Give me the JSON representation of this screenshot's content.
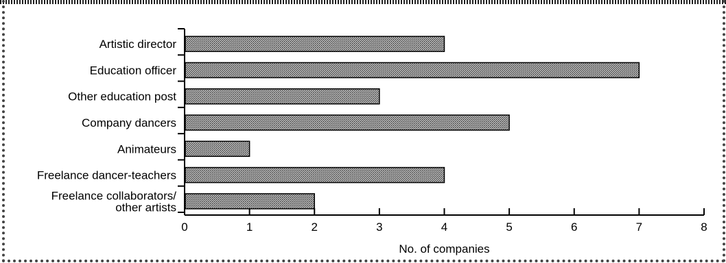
{
  "chart_data": {
    "type": "bar",
    "orientation": "horizontal",
    "categories": [
      [
        "Artistic director"
      ],
      [
        "Education officer"
      ],
      [
        "Other education post"
      ],
      [
        "Company dancers"
      ],
      [
        "Animateurs"
      ],
      [
        "Freelance dancer-teachers"
      ],
      [
        "Freelance collaborators/",
        "other artists"
      ]
    ],
    "values": [
      4,
      7,
      3,
      5,
      1,
      4,
      2
    ],
    "xlabel": "No. of companies",
    "ylabel": "",
    "xlim": [
      0,
      8
    ],
    "xticks": [
      0,
      1,
      2,
      3,
      4,
      5,
      6,
      7,
      8
    ],
    "grid": false,
    "bar_pattern": "stippled-grey"
  }
}
